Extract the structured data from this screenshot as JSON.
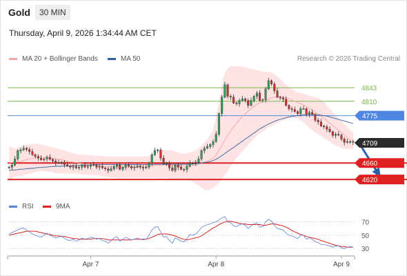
{
  "header": {
    "title": "Gold",
    "timeframe": "30 MIN",
    "datetime": "Thursday, April 9, 2026 1:34:44 AM CET"
  },
  "legend": {
    "items": [
      {
        "label": "MA 20 + Bollinger Bands",
        "color": "#f4a3a3"
      },
      {
        "label": "MA 50",
        "color": "#2f5f9e"
      }
    ],
    "credit": "Research © 2026 Trading Central"
  },
  "rsi_legend": {
    "items": [
      {
        "label": "RSI",
        "color": "#5b7fd6"
      },
      {
        "label": "9MA",
        "color": "#e02020"
      }
    ]
  },
  "colors": {
    "up": "#2e9e5b",
    "down": "#d03030",
    "target_line": "#7ab648",
    "pivot_line": "#4f86e0",
    "support_line": "#e02020",
    "band_fill": "#fde3e3",
    "arrow": "#2a5ea8"
  },
  "chart_data": [
    {
      "type": "candlestick",
      "title": "Gold",
      "ylim": [
        4590,
        4880
      ],
      "x_tick_labels": [
        "Apr 7",
        "Apr 8",
        "Apr 9"
      ],
      "x_tick_positions": [
        28,
        71,
        114
      ],
      "forecast_arrow": {
        "from": [
          120,
          4709
        ],
        "to": [
          127,
          4630
        ]
      },
      "levels": [
        {
          "value": 4843,
          "label": "4843",
          "kind": "target"
        },
        {
          "value": 4810,
          "label": "4810",
          "kind": "target"
        },
        {
          "value": 4775,
          "label": "4775",
          "kind": "pivot"
        },
        {
          "value": 4709,
          "label": "4709",
          "kind": "last"
        },
        {
          "value": 4660,
          "label": "4660",
          "kind": "support"
        },
        {
          "value": 4620,
          "label": "4620",
          "kind": "support"
        }
      ],
      "close": [
        4650,
        4655,
        4670,
        4690,
        4692,
        4696,
        4693,
        4688,
        4680,
        4676,
        4672,
        4668,
        4670,
        4674,
        4669,
        4665,
        4660,
        4661,
        4662,
        4656,
        4653,
        4650,
        4652,
        4648,
        4650,
        4655,
        4650,
        4652,
        4656,
        4655,
        4650,
        4652,
        4648,
        4646,
        4642,
        4646,
        4652,
        4655,
        4645,
        4650,
        4655,
        4652,
        4648,
        4650,
        4653,
        4650,
        4648,
        4650,
        4660,
        4680,
        4690,
        4692,
        4672,
        4658,
        4660,
        4648,
        4642,
        4655,
        4650,
        4645,
        4644,
        4652,
        4660,
        4660,
        4662,
        4670,
        4690,
        4696,
        4700,
        4705,
        4712,
        4730,
        4780,
        4820,
        4850,
        4822,
        4820,
        4806,
        4804,
        4812,
        4816,
        4812,
        4800,
        4812,
        4822,
        4830,
        4812,
        4814,
        4840,
        4860,
        4852,
        4835,
        4820,
        4818,
        4815,
        4800,
        4792,
        4790,
        4785,
        4780,
        4792,
        4792,
        4778,
        4783,
        4778,
        4764,
        4760,
        4750,
        4748,
        4742,
        4736,
        4727,
        4730,
        4728,
        4718,
        4710,
        4712,
        4712,
        4710
      ],
      "ma20": [
        4660,
        4661,
        4662,
        4663,
        4664,
        4666,
        4668,
        4670,
        4671,
        4673,
        4674,
        4674,
        4674,
        4673,
        4672,
        4671,
        4670,
        4669,
        4668,
        4666,
        4664,
        4663,
        4662,
        4661,
        4660,
        4659,
        4657,
        4656,
        4655,
        4655,
        4654,
        4653,
        4652,
        4651,
        4651,
        4650,
        4650,
        4650,
        4650,
        4649,
        4649,
        4649,
        4649,
        4650,
        4650,
        4650,
        4650,
        4651,
        4652,
        4653,
        4654,
        4655,
        4655,
        4655,
        4655,
        4655,
        4654,
        4654,
        4653,
        4653,
        4652,
        4652,
        4653,
        4654,
        4655,
        4657,
        4659,
        4662,
        4665,
        4668,
        4672,
        4680,
        4690,
        4703,
        4716,
        4727,
        4738,
        4748,
        4757,
        4765,
        4773,
        4780,
        4786,
        4792,
        4798,
        4803,
        4806,
        4809,
        4812,
        4815,
        4818,
        4820,
        4821,
        4821,
        4820,
        4818,
        4816,
        4813,
        4810,
        4807,
        4804,
        4801,
        4797,
        4793,
        4789,
        4784,
        4779,
        4774,
        4768,
        4762,
        4757,
        4751,
        4746,
        4740,
        4734,
        4728,
        4722,
        4716,
        4711
      ],
      "bb_upper": [
        4700,
        4698,
        4696,
        4698,
        4700,
        4702,
        4704,
        4705,
        4706,
        4707,
        4706,
        4705,
        4704,
        4702,
        4700,
        4698,
        4696,
        4694,
        4692,
        4690,
        4688,
        4686,
        4684,
        4682,
        4680,
        4680,
        4680,
        4679,
        4679,
        4678,
        4678,
        4677,
        4677,
        4676,
        4676,
        4676,
        4676,
        4676,
        4676,
        4676,
        4676,
        4676,
        4676,
        4676,
        4676,
        4676,
        4676,
        4676,
        4677,
        4680,
        4684,
        4688,
        4690,
        4691,
        4692,
        4692,
        4690,
        4688,
        4686,
        4684,
        4683,
        4684,
        4686,
        4688,
        4691,
        4696,
        4702,
        4710,
        4718,
        4728,
        4742,
        4770,
        4810,
        4850,
        4880,
        4890,
        4895,
        4895,
        4895,
        4895,
        4894,
        4892,
        4890,
        4889,
        4888,
        4886,
        4884,
        4882,
        4882,
        4882,
        4880,
        4876,
        4870,
        4864,
        4857,
        4850,
        4845,
        4840,
        4836,
        4832,
        4830,
        4828,
        4826,
        4824,
        4822,
        4820,
        4818,
        4814,
        4808,
        4800,
        4792,
        4784,
        4776,
        4769,
        4762,
        4755,
        4748,
        4740,
        4734
      ],
      "bb_lower": [
        4620,
        4622,
        4626,
        4628,
        4628,
        4630,
        4632,
        4634,
        4636,
        4638,
        4640,
        4640,
        4640,
        4639,
        4638,
        4637,
        4636,
        4635,
        4634,
        4634,
        4634,
        4634,
        4634,
        4634,
        4633,
        4632,
        4632,
        4631,
        4631,
        4630,
        4630,
        4629,
        4628,
        4627,
        4626,
        4625,
        4625,
        4624,
        4624,
        4623,
        4623,
        4623,
        4623,
        4623,
        4623,
        4623,
        4623,
        4623,
        4623,
        4624,
        4624,
        4624,
        4624,
        4624,
        4624,
        4622,
        4620,
        4619,
        4619,
        4620,
        4621,
        4620,
        4617,
        4614,
        4610,
        4606,
        4600,
        4595,
        4594,
        4596,
        4600,
        4605,
        4612,
        4620,
        4630,
        4640,
        4652,
        4662,
        4672,
        4680,
        4688,
        4696,
        4704,
        4712,
        4720,
        4726,
        4732,
        4737,
        4742,
        4746,
        4750,
        4754,
        4758,
        4761,
        4764,
        4766,
        4768,
        4770,
        4770,
        4768,
        4764,
        4758,
        4752,
        4746,
        4740,
        4734,
        4730,
        4725,
        4720,
        4716,
        4711,
        4706,
        4702,
        4700,
        4697,
        4695,
        4694,
        4694,
        4694
      ],
      "ma50": [
        4642,
        4643,
        4643,
        4644,
        4645,
        4645,
        4646,
        4647,
        4647,
        4648,
        4649,
        4649,
        4650,
        4650,
        4651,
        4651,
        4652,
        4652,
        4652,
        4653,
        4653,
        4653,
        4654,
        4654,
        4654,
        4655,
        4655,
        4655,
        4655,
        4656,
        4656,
        4656,
        4656,
        4656,
        4656,
        4656,
        4656,
        4656,
        4656,
        4656,
        4656,
        4656,
        4656,
        4656,
        4656,
        4656,
        4656,
        4656,
        4656,
        4656,
        4657,
        4657,
        4657,
        4657,
        4657,
        4657,
        4657,
        4657,
        4657,
        4657,
        4657,
        4657,
        4657,
        4658,
        4658,
        4659,
        4660,
        4661,
        4662,
        4664,
        4666,
        4669,
        4673,
        4678,
        4683,
        4688,
        4693,
        4698,
        4703,
        4708,
        4713,
        4718,
        4723,
        4728,
        4733,
        4738,
        4743,
        4747,
        4751,
        4755,
        4758,
        4761,
        4764,
        4766,
        4768,
        4770,
        4772,
        4773,
        4774,
        4775,
        4776,
        4777,
        4778,
        4778,
        4778,
        4778,
        4777,
        4776,
        4775,
        4774,
        4772,
        4770,
        4768,
        4766,
        4764,
        4762,
        4760,
        4758,
        4756
      ]
    },
    {
      "type": "line",
      "title": "",
      "ylim": [
        25,
        80
      ],
      "y_tick_labels": [
        "70",
        "50",
        "30"
      ],
      "y_ticks": [
        70,
        50,
        30
      ],
      "series": [
        {
          "name": "RSI",
          "values": [
            52,
            54,
            56,
            58,
            60,
            61,
            58,
            55,
            52,
            50,
            48,
            47,
            50,
            53,
            50,
            48,
            46,
            47,
            49,
            45,
            43,
            42,
            44,
            41,
            43,
            46,
            44,
            45,
            47,
            46,
            44,
            45,
            42,
            41,
            38,
            42,
            46,
            48,
            41,
            44,
            47,
            45,
            43,
            44,
            46,
            44,
            43,
            44,
            50,
            58,
            62,
            63,
            55,
            47,
            48,
            42,
            38,
            46,
            44,
            41,
            40,
            45,
            51,
            50,
            52,
            56,
            62,
            64,
            66,
            67,
            69,
            70,
            73,
            76,
            78,
            70,
            69,
            64,
            63,
            66,
            67,
            65,
            60,
            64,
            67,
            69,
            62,
            63,
            70,
            74,
            71,
            65,
            60,
            59,
            58,
            53,
            50,
            49,
            47,
            45,
            50,
            50,
            44,
            46,
            44,
            40,
            39,
            36,
            36,
            35,
            34,
            32,
            34,
            34,
            31,
            30,
            32,
            33,
            32
          ]
        },
        {
          "name": "9MA",
          "values": [
            50,
            51,
            52,
            53,
            54,
            55,
            56,
            56,
            56,
            56,
            55,
            54,
            53,
            52,
            51,
            50,
            49,
            49,
            48,
            48,
            47,
            46,
            45,
            45,
            44,
            44,
            44,
            44,
            44,
            45,
            45,
            45,
            45,
            44,
            43,
            43,
            43,
            43,
            43,
            43,
            43,
            43,
            43,
            44,
            44,
            44,
            44,
            44,
            45,
            47,
            49,
            51,
            52,
            52,
            52,
            51,
            50,
            49,
            47,
            45,
            44,
            43,
            44,
            45,
            46,
            47,
            49,
            52,
            55,
            58,
            61,
            63,
            66,
            68,
            70,
            71,
            71,
            70,
            69,
            68,
            67,
            67,
            66,
            66,
            66,
            66,
            66,
            65,
            65,
            66,
            67,
            67,
            66,
            65,
            64,
            62,
            60,
            57,
            55,
            53,
            51,
            50,
            48,
            47,
            46,
            45,
            44,
            42,
            41,
            39,
            38,
            36,
            35,
            34,
            33,
            33,
            32,
            32,
            32
          ]
        }
      ]
    }
  ]
}
